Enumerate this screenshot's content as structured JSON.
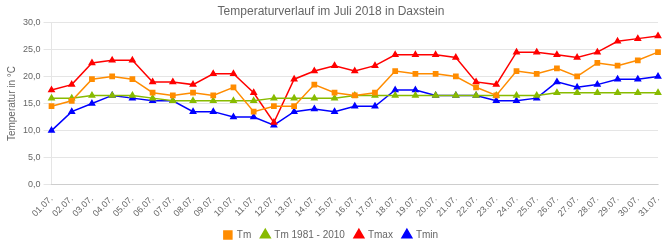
{
  "chart_data": {
    "type": "line",
    "title": "Temperaturverlauf im Juli 2018 in Daxstein",
    "y_label": "Temperatur in °C",
    "categories": [
      "01.07.",
      "02.07.",
      "03.07.",
      "04.07.",
      "05.07.",
      "06.07.",
      "07.07.",
      "08.07.",
      "09.07.",
      "10.07.",
      "11.07.",
      "12.07.",
      "13.07.",
      "14.07.",
      "15.07.",
      "16.07.",
      "17.07.",
      "18.07.",
      "19.07.",
      "20.07.",
      "21.07.",
      "22.07.",
      "23.07.",
      "24.07.",
      "25.07.",
      "26.07.",
      "27.07.",
      "28.07.",
      "29.07.",
      "30.07.",
      "31.07."
    ],
    "series": [
      {
        "name": "Tm",
        "color": "#FF8C00",
        "marker": "square",
        "values": [
          14.5,
          15.5,
          19.5,
          20.0,
          19.5,
          17.0,
          16.5,
          17.0,
          16.5,
          18.0,
          13.5,
          14.5,
          14.5,
          18.5,
          17.0,
          16.5,
          17.0,
          21.0,
          20.5,
          20.5,
          20.0,
          18.0,
          16.5,
          21.0,
          20.5,
          21.5,
          20.0,
          22.5,
          22.0,
          23.0,
          24.5
        ]
      },
      {
        "name": "Tm 1981 - 2010",
        "color": "#88BB00",
        "marker": "triangle",
        "values": [
          16.0,
          16.0,
          16.5,
          16.5,
          16.5,
          16.0,
          15.5,
          15.5,
          15.5,
          15.5,
          15.5,
          16.0,
          16.0,
          16.0,
          16.0,
          16.5,
          16.5,
          16.5,
          16.5,
          16.5,
          16.5,
          16.5,
          16.5,
          16.5,
          16.5,
          17.0,
          17.0,
          17.0,
          17.0,
          17.0,
          17.0
        ]
      },
      {
        "name": "Tmax",
        "color": "#FF0000",
        "marker": "triangle",
        "values": [
          17.5,
          18.5,
          22.5,
          23.0,
          23.0,
          19.0,
          19.0,
          18.5,
          20.5,
          20.5,
          17.0,
          11.5,
          19.5,
          21.0,
          22.0,
          21.0,
          22.0,
          24.0,
          24.0,
          24.0,
          23.5,
          19.0,
          18.5,
          24.5,
          24.5,
          24.0,
          23.5,
          24.5,
          26.5,
          27.0,
          27.5
        ]
      },
      {
        "name": "Tmin",
        "color": "#0000FF",
        "marker": "triangle",
        "values": [
          10.0,
          13.5,
          15.0,
          16.5,
          16.0,
          15.5,
          15.5,
          13.5,
          13.5,
          12.5,
          12.5,
          11.0,
          13.5,
          14.0,
          13.5,
          14.5,
          14.5,
          17.5,
          17.5,
          16.5,
          16.5,
          16.5,
          15.5,
          15.5,
          16.0,
          19.0,
          18.0,
          18.5,
          19.5,
          19.5,
          20.0
        ]
      }
    ],
    "ylim": [
      0.0,
      30.0
    ],
    "yticks": [
      {
        "value": 0.0,
        "label": "0,0"
      },
      {
        "value": 5.0,
        "label": "5,0"
      },
      {
        "value": 10.0,
        "label": "10,0"
      },
      {
        "value": 15.0,
        "label": "15,0"
      },
      {
        "value": 20.0,
        "label": "20,0"
      },
      {
        "value": 25.0,
        "label": "25,0"
      },
      {
        "value": 30.0,
        "label": "30,0"
      }
    ],
    "grid": true,
    "legend": "bottom"
  }
}
